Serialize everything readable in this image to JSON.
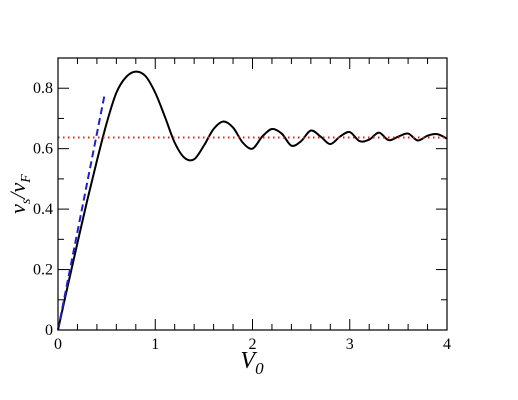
{
  "chart_data": {
    "type": "line",
    "title": "",
    "xlim": [
      0,
      4
    ],
    "ylim": [
      0,
      0.9
    ],
    "x_ticks": [
      0,
      1,
      2,
      3,
      4
    ],
    "x_tick_labels": [
      "0",
      "1",
      "2",
      "3",
      "4"
    ],
    "y_ticks": [
      0,
      0.2,
      0.4,
      0.6,
      0.8
    ],
    "y_tick_labels": [
      "0",
      "0.2",
      "0.4",
      "0.6",
      "0.8"
    ],
    "xlabel": {
      "main": "V",
      "sub": "0"
    },
    "ylabel": {
      "num": "v",
      "num_sub": "s",
      "den": "v",
      "den_sub": "F"
    },
    "grid": false,
    "legend": "none",
    "series": [
      {
        "style": "solid",
        "color": "#000000",
        "x": [
          0,
          0.1,
          0.2,
          0.3,
          0.4,
          0.5,
          0.6,
          0.7,
          0.8,
          0.9,
          1.0,
          1.1,
          1.2,
          1.3,
          1.4,
          1.5,
          1.6,
          1.7,
          1.8,
          1.9,
          2.0,
          2.1,
          2.2,
          2.3,
          2.4,
          2.5,
          2.6,
          2.7,
          2.8,
          2.9,
          3.0,
          3.1,
          3.2,
          3.3,
          3.4,
          3.5,
          3.6,
          3.7,
          3.8,
          3.9,
          4.0
        ],
        "y": [
          0,
          0.146,
          0.288,
          0.428,
          0.56,
          0.684,
          0.785,
          0.837,
          0.855,
          0.84,
          0.785,
          0.705,
          0.62,
          0.57,
          0.565,
          0.61,
          0.665,
          0.69,
          0.67,
          0.62,
          0.6,
          0.64,
          0.665,
          0.65,
          0.61,
          0.625,
          0.66,
          0.64,
          0.615,
          0.64,
          0.655,
          0.625,
          0.63,
          0.653,
          0.628,
          0.64,
          0.65,
          0.627,
          0.643,
          0.648,
          0.633
        ]
      },
      {
        "style": "dashed",
        "color": "#1f1fcf",
        "x": [
          0,
          0.48
        ],
        "y": [
          0,
          0.78
        ]
      },
      {
        "style": "dotted",
        "color": "#e02020",
        "x": [
          0,
          4
        ],
        "y": [
          0.637,
          0.637
        ]
      }
    ]
  }
}
